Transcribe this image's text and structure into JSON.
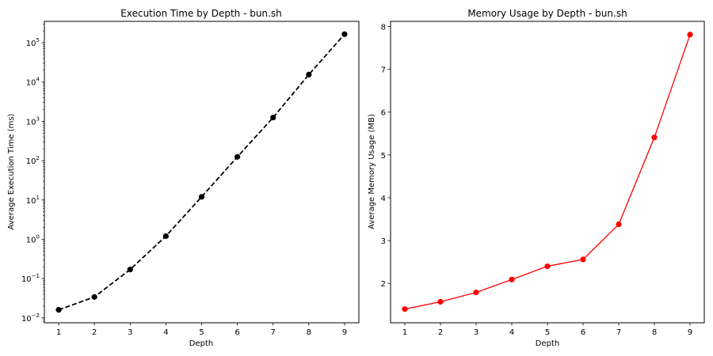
{
  "chart_data": [
    {
      "type": "line",
      "title": "Execution Time by Depth - bun.sh",
      "xlabel": "Depth",
      "ylabel": "Average Execution Time (ms)",
      "yscale": "log",
      "ylim": [
        0.0075,
        350000
      ],
      "xlim": [
        0.6,
        9.4
      ],
      "xticks": [
        "1",
        "2",
        "3",
        "4",
        "5",
        "6",
        "7",
        "8",
        "9"
      ],
      "yticks": [
        {
          "base": "10",
          "exp": "−2",
          "value": 0.01
        },
        {
          "base": "10",
          "exp": "−1",
          "value": 0.1
        },
        {
          "base": "10",
          "exp": "0",
          "value": 1
        },
        {
          "base": "10",
          "exp": "1",
          "value": 10
        },
        {
          "base": "10",
          "exp": "2",
          "value": 100
        },
        {
          "base": "10",
          "exp": "3",
          "value": 1000
        },
        {
          "base": "10",
          "exp": "4",
          "value": 10000
        },
        {
          "base": "10",
          "exp": "5",
          "value": 100000
        }
      ],
      "grid": false,
      "line_color": "#000000",
      "line_style": "dashed",
      "x": [
        1,
        2,
        3,
        4,
        5,
        6,
        7,
        8,
        9
      ],
      "y": [
        0.016,
        0.034,
        0.17,
        1.2,
        12,
        125,
        1250,
        15500,
        165000
      ]
    },
    {
      "type": "line",
      "title": "Memory Usage by Depth - bun.sh",
      "xlabel": "Depth",
      "ylabel": "Average Memory Usage (MB)",
      "yscale": "linear",
      "ylim": [
        1.08,
        8.12
      ],
      "xlim": [
        0.6,
        9.4
      ],
      "xticks": [
        "1",
        "2",
        "3",
        "4",
        "5",
        "6",
        "7",
        "8",
        "9"
      ],
      "yticks": [
        "2",
        "3",
        "4",
        "5",
        "6",
        "7",
        "8"
      ],
      "grid": false,
      "line_color": "#ff0000",
      "line_style": "solid",
      "x": [
        1,
        2,
        3,
        4,
        5,
        6,
        7,
        8,
        9
      ],
      "y": [
        1.4,
        1.57,
        1.79,
        2.09,
        2.4,
        2.56,
        3.38,
        5.41,
        7.81
      ]
    }
  ]
}
